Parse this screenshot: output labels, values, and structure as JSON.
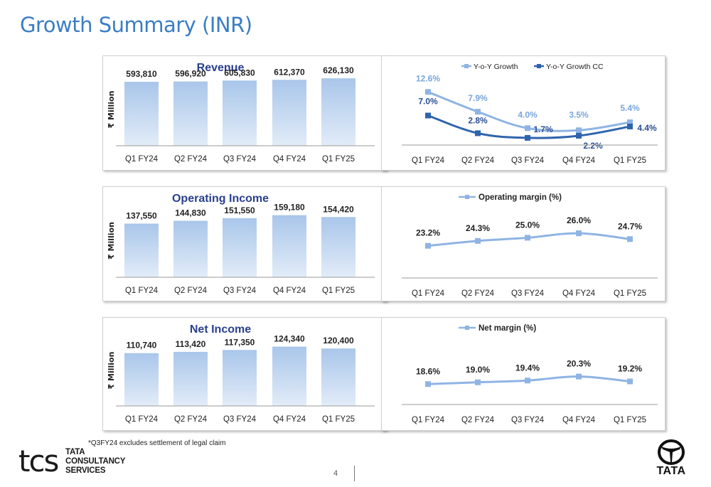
{
  "page": {
    "title": "Growth Summary (INR)",
    "footnote": "*Q3FY24 excludes settlement of legal claim",
    "page_number": "4"
  },
  "branding": {
    "tcs_mark": "tcs",
    "tcs_name_lines": [
      "TATA",
      "CONSULTANCY",
      "SERVICES"
    ],
    "tata_wordmark": "TATA"
  },
  "colors": {
    "title": "#3b7dc4",
    "bar_top": "#a9c6ea",
    "bar_bottom": "#e2ecf8",
    "chart_title": "#2a3f8f",
    "line_light": "#8fb4e3",
    "line_dark": "#2f64ad",
    "label_light": "#7aa5dc",
    "label_dark": "#2a4f95"
  },
  "chart_data": [
    {
      "id": "revenue",
      "type": "bar",
      "title": "Revenue",
      "ylabel": "₹ Million",
      "categories": [
        "Q1 FY24",
        "Q2 FY24",
        "Q3 FY24",
        "Q4 FY24",
        "Q1 FY25"
      ],
      "values": [
        593810,
        596920,
        605830,
        612370,
        626130
      ],
      "value_labels": [
        "593,810",
        "596,920",
        "605,830",
        "612,370",
        "626,130"
      ],
      "ylim": [
        0,
        700000
      ],
      "grid": false
    },
    {
      "id": "revenue-growth",
      "type": "line",
      "title": "",
      "categories": [
        "Q1 FY24",
        "Q2 FY24",
        "Q3 FY24",
        "Q4 FY24",
        "Q1 FY25"
      ],
      "series": [
        {
          "name": "Y-o-Y Growth",
          "values": [
            12.6,
            7.9,
            4.0,
            3.5,
            5.4
          ],
          "labels": [
            "12.6%",
            "7.9%",
            "4.0%",
            "3.5%",
            "5.4%"
          ],
          "color": "#8fb4e3"
        },
        {
          "name": "Y-o-Y Growth CC",
          "values": [
            7.0,
            2.8,
            1.7,
            2.2,
            4.4
          ],
          "labels": [
            "7.0%",
            "2.8%",
            "1.7%",
            "2.2%",
            "4.4%"
          ],
          "color": "#2f64ad"
        }
      ],
      "ylim": [
        0,
        14
      ],
      "legend": "top",
      "grid": false
    },
    {
      "id": "operating-income",
      "type": "bar",
      "title": "Operating Income",
      "ylabel": "₹ Million",
      "categories": [
        "Q1 FY24",
        "Q2 FY24",
        "Q3 FY24",
        "Q4 FY24",
        "Q1 FY25"
      ],
      "values": [
        137550,
        144830,
        151550,
        159180,
        154420
      ],
      "value_labels": [
        "137,550",
        "144,830",
        "151,550",
        "159,180",
        "154,420"
      ],
      "ylim": [
        0,
        195000
      ],
      "grid": false
    },
    {
      "id": "operating-margin",
      "type": "line",
      "title": "",
      "categories": [
        "Q1 FY24",
        "Q2 FY24",
        "Q3 FY24",
        "Q4 FY24",
        "Q1 FY25"
      ],
      "series": [
        {
          "name": "Operating margin (%)",
          "values": [
            23.2,
            24.3,
            25.0,
            26.0,
            24.7
          ],
          "labels": [
            "23.2%",
            "24.3%",
            "25.0%",
            "26.0%",
            "24.7%"
          ],
          "color": "#8fb4e3"
        }
      ],
      "ylim": [
        16,
        30
      ],
      "legend": "top",
      "grid": false
    },
    {
      "id": "net-income",
      "type": "bar",
      "title": "Net Income",
      "ylabel": "₹ Million",
      "categories": [
        "Q1 FY24",
        "Q2 FY24",
        "Q3 FY24",
        "Q4 FY24",
        "Q1 FY25"
      ],
      "values": [
        110740,
        113420,
        117350,
        124340,
        120400
      ],
      "value_labels": [
        "110,740",
        "113,420",
        "117,350",
        "124,340",
        "120,400"
      ],
      "ylim": [
        0,
        155000
      ],
      "grid": false
    },
    {
      "id": "net-margin",
      "type": "line",
      "title": "",
      "categories": [
        "Q1 FY24",
        "Q2 FY24",
        "Q3 FY24",
        "Q4 FY24",
        "Q1 FY25"
      ],
      "series": [
        {
          "name": "Net margin (%)",
          "values": [
            18.6,
            19.0,
            19.4,
            20.3,
            19.2
          ],
          "labels": [
            "18.6%",
            "19.0%",
            "19.4%",
            "20.3%",
            "19.2%"
          ],
          "color": "#8fb4e3"
        }
      ],
      "ylim": [
        14,
        22
      ],
      "legend": "top",
      "grid": false
    }
  ]
}
